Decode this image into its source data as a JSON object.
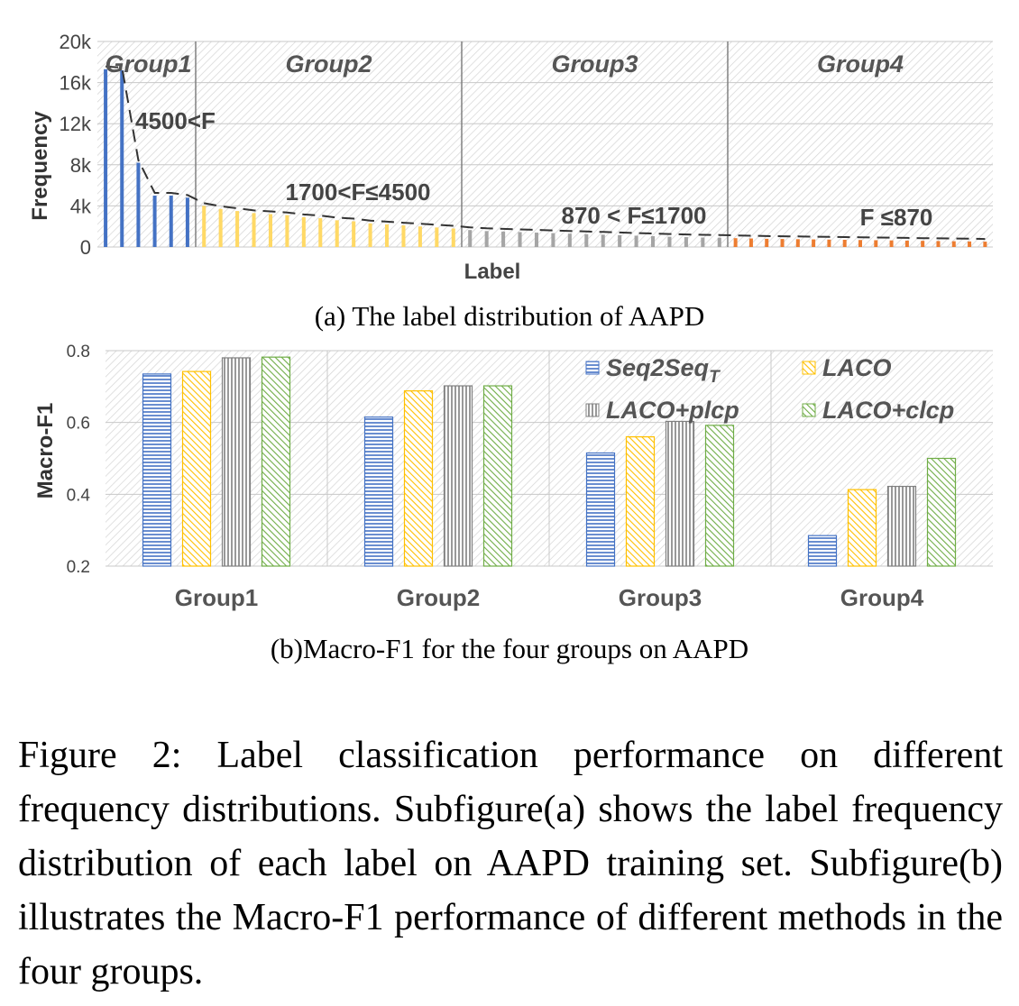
{
  "chart_data": [
    {
      "type": "bar",
      "caption": "(a) The label distribution of AAPD",
      "xlabel": "Label",
      "ylabel": "Frequency",
      "ylim": [
        0,
        20000
      ],
      "yticks": [
        0,
        4000,
        8000,
        12000,
        16000,
        20000
      ],
      "ytick_labels": [
        "0",
        "4k",
        "8k",
        "12k",
        "16k",
        "20k"
      ],
      "grid": true,
      "groups": [
        {
          "name": "Group1",
          "range_label": "4500<F",
          "color": "#4472c4",
          "values": [
            17300,
            17200,
            8200,
            5000,
            5000,
            4800
          ]
        },
        {
          "name": "Group2",
          "range_label": "1700<F≤4500",
          "color": "#ffd966",
          "values": [
            4000,
            3700,
            3500,
            3300,
            3200,
            3100,
            2900,
            2800,
            2600,
            2500,
            2300,
            2200,
            2100,
            2000,
            1900,
            1800
          ]
        },
        {
          "name": "Group3",
          "range_label": "870 < F≤1700",
          "color": "#a5a5a5",
          "values": [
            1650,
            1550,
            1500,
            1450,
            1400,
            1350,
            1300,
            1250,
            1200,
            1150,
            1100,
            1050,
            1000,
            960,
            920,
            900
          ]
        },
        {
          "name": "Group4",
          "range_label": "F ≤870",
          "color": "#ed7d31",
          "values": [
            860,
            830,
            800,
            780,
            760,
            740,
            720,
            700,
            680,
            660,
            640,
            620,
            600,
            580,
            560,
            540,
            520
          ]
        }
      ]
    },
    {
      "type": "bar",
      "caption": "(b)Macro-F1 for the four groups on AAPD",
      "ylabel": "Macro-F1",
      "ylim": [
        0.2,
        0.8
      ],
      "yticks": [
        0.2,
        0.4,
        0.6,
        0.8
      ],
      "ytick_labels": [
        "0.2",
        "0.4",
        "0.6",
        "0.8"
      ],
      "categories": [
        "Group1",
        "Group2",
        "Group3",
        "Group4"
      ],
      "legend_position": "top-right",
      "series": [
        {
          "name": "Seq2Seq",
          "subscript": "T",
          "color": "#4472c4",
          "pattern": "horizontal",
          "values": [
            0.735,
            0.615,
            0.515,
            0.285
          ]
        },
        {
          "name": "LACO",
          "subscript": "",
          "color": "#ffc000",
          "pattern": "diagonal",
          "values": [
            0.742,
            0.688,
            0.56,
            0.413
          ]
        },
        {
          "name": "LACO+plcp",
          "subscript": "",
          "color": "#7f7f7f",
          "pattern": "vertical",
          "values": [
            0.78,
            0.702,
            0.603,
            0.422
          ]
        },
        {
          "name": "LACO+clcp",
          "subscript": "",
          "color": "#70ad47",
          "pattern": "diagonal",
          "values": [
            0.782,
            0.702,
            0.592,
            0.5
          ]
        }
      ]
    }
  ],
  "figure_caption": {
    "lines": [
      "Figure 2: Label classification performance on different",
      "frequency distributions.  Subfigure(a) shows the label",
      "frequency distribution of each label on AAPD training",
      "set. Subfigure(b) illustrates the Macro-F1 performance",
      "of different methods in the four groups."
    ]
  }
}
